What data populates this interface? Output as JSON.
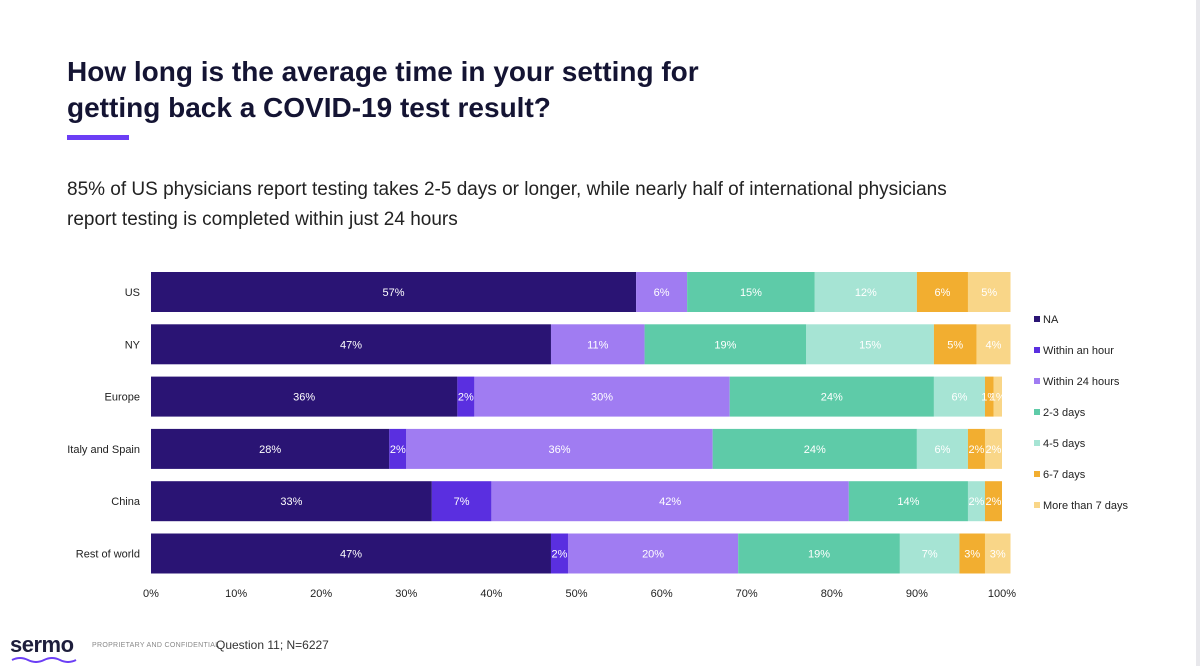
{
  "title": "How long is the average time in your setting for\ngetting back a COVID-19 test result?",
  "subtitle": "85% of US physicians report testing takes 2-5 days or longer, while nearly half of international physicians\nreport testing is completed within just 24 hours",
  "colors": {
    "accent": "#6c3ef5",
    "series": [
      "#2a1474",
      "#5a2fe0",
      "#a07cf2",
      "#5ecba8",
      "#a6e4d4",
      "#f2ae30",
      "#f9d688"
    ]
  },
  "footer": {
    "logo": "sermo",
    "confidential": "PROPRIETARY AND CONFIDENTIAL",
    "note": "Question 11; N=6227"
  },
  "chart_data": {
    "type": "bar",
    "orientation": "horizontal",
    "stacked": true,
    "categories": [
      "US",
      "NY",
      "Europe",
      "Italy and Spain",
      "China",
      "Rest of world"
    ],
    "series": [
      {
        "name": "NA",
        "values": [
          57,
          47,
          36,
          28,
          33,
          47
        ]
      },
      {
        "name": "Within an hour",
        "values": [
          0,
          0,
          2,
          2,
          7,
          2
        ]
      },
      {
        "name": "Within 24 hours",
        "values": [
          6,
          11,
          30,
          36,
          42,
          20
        ]
      },
      {
        "name": "2-3 days",
        "values": [
          15,
          19,
          24,
          24,
          14,
          19
        ]
      },
      {
        "name": "4-5 days",
        "values": [
          12,
          15,
          6,
          6,
          2,
          7
        ]
      },
      {
        "name": "6-7 days",
        "values": [
          6,
          5,
          1,
          2,
          2,
          3
        ]
      },
      {
        "name": "More than 7 days",
        "values": [
          5,
          4,
          1,
          2,
          0,
          3
        ]
      }
    ],
    "data_labels": [
      [
        "57%",
        "",
        "6%",
        "15%",
        "12%",
        "6%",
        "5%"
      ],
      [
        "47%",
        "",
        "11%",
        "19%",
        "15%",
        "5%",
        "4%"
      ],
      [
        "36%",
        "2%",
        "30%",
        "24%",
        "6%",
        "1%",
        "1%"
      ],
      [
        "28%",
        "2%",
        "36%",
        "24%",
        "6%",
        "2%",
        "2%"
      ],
      [
        "33%",
        "7%",
        "42%",
        "14%",
        "2%",
        "2%",
        ""
      ],
      [
        "47%",
        "2%",
        "20%",
        "19%",
        "7%",
        "3%",
        "3%"
      ]
    ],
    "xlim": [
      0,
      100
    ],
    "xticks": [
      "0%",
      "10%",
      "20%",
      "30%",
      "40%",
      "50%",
      "60%",
      "70%",
      "80%",
      "90%",
      "100%"
    ],
    "grid": false,
    "legend_position": "right"
  }
}
